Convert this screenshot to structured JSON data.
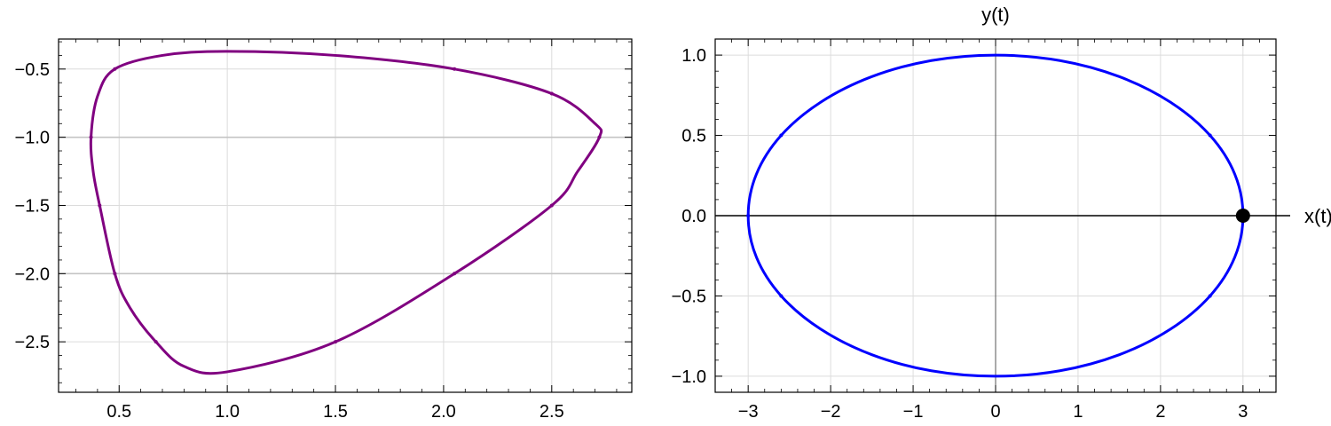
{
  "chart_data": [
    {
      "type": "line",
      "title": "",
      "xlabel": "",
      "ylabel": "",
      "xlim": [
        0.22,
        2.87
      ],
      "ylim": [
        -2.87,
        -0.28
      ],
      "xticks": [
        0.5,
        1.0,
        1.5,
        2.0,
        2.5
      ],
      "xtick_labels": [
        "0.5",
        "1.0",
        "1.5",
        "2.0",
        "2.5"
      ],
      "yticks": [
        -0.5,
        -1.0,
        -1.5,
        -2.0,
        -2.5
      ],
      "ytick_labels": [
        "−0.5",
        "−1.0",
        "−1.5",
        "−2.0",
        "−2.5"
      ],
      "grid": true,
      "frame": true,
      "highlight_gridlines_y": [
        -1.0,
        -2.0
      ],
      "series": [
        {
          "color": "#800080",
          "closed": true,
          "x": [
            0.37,
            0.4,
            0.48,
            0.7,
            1.0,
            1.5,
            2.05,
            2.5,
            2.7,
            2.72,
            2.62,
            2.5,
            2.05,
            1.5,
            1.0,
            0.8,
            0.67,
            0.55,
            0.48,
            0.41,
            0.38,
            0.37
          ],
          "y": [
            -1.0,
            -0.7,
            -0.5,
            -0.4,
            -0.37,
            -0.4,
            -0.5,
            -0.68,
            -0.9,
            -1.0,
            -1.25,
            -1.5,
            -2.0,
            -2.5,
            -2.72,
            -2.68,
            -2.5,
            -2.25,
            -2.0,
            -1.5,
            -1.25,
            -1.0
          ]
        }
      ],
      "markers": [
        {
          "x": 0.37,
          "y": -1.0
        },
        {
          "x": 0.48,
          "y": -0.5
        },
        {
          "x": 2.05,
          "y": -0.5
        },
        {
          "x": 2.5,
          "y": -0.68
        },
        {
          "x": 2.72,
          "y": -1.0
        },
        {
          "x": 2.5,
          "y": -1.5
        },
        {
          "x": 2.05,
          "y": -2.0
        },
        {
          "x": 1.5,
          "y": -2.5
        },
        {
          "x": 0.67,
          "y": -2.5
        },
        {
          "x": 0.48,
          "y": -2.0
        },
        {
          "x": 0.41,
          "y": -1.5
        }
      ],
      "marker_color": "#800080"
    },
    {
      "type": "line",
      "title": "",
      "xlabel": "x(t)",
      "ylabel": "y(t)",
      "xlim": [
        -3.4,
        3.4
      ],
      "ylim": [
        -1.1,
        1.1
      ],
      "xticks": [
        -3,
        -2,
        -1,
        0,
        1,
        2,
        3
      ],
      "xtick_labels": [
        "−3",
        "−2",
        "−1",
        "0",
        "1",
        "2",
        "3"
      ],
      "yticks": [
        1.0,
        0.5,
        0.0,
        -0.5,
        -1.0
      ],
      "ytick_labels": [
        "1.0",
        "0.5",
        "0.0",
        "−0.5",
        "−1.0"
      ],
      "grid": true,
      "frame": true,
      "axes_through_origin": true,
      "series": [
        {
          "color": "#0000FF",
          "closed": true,
          "x": [
            3.0,
            2.9,
            2.6,
            2.12,
            1.5,
            0.78,
            0.0,
            -0.78,
            -1.5,
            -2.12,
            -2.6,
            -2.9,
            -3.0,
            -2.9,
            -2.6,
            -2.12,
            -1.5,
            -0.78,
            0.0,
            0.78,
            1.5,
            2.12,
            2.6,
            2.9,
            3.0
          ],
          "y": [
            0.0,
            0.259,
            0.5,
            0.707,
            0.866,
            0.966,
            1.0,
            0.966,
            0.866,
            0.707,
            0.5,
            0.259,
            0.0,
            -0.259,
            -0.5,
            -0.707,
            -0.866,
            -0.966,
            -1.0,
            -0.966,
            -0.866,
            -0.707,
            -0.5,
            -0.259,
            0.0
          ]
        }
      ],
      "markers": [
        {
          "x": 2.6,
          "y": 0.5
        },
        {
          "x": -2.6,
          "y": 0.5
        },
        {
          "x": -3.0,
          "y": 0.0
        },
        {
          "x": -2.6,
          "y": -0.5
        },
        {
          "x": 2.6,
          "y": -0.5
        }
      ],
      "marker_color": "#0000FF",
      "point": {
        "x": 3.0,
        "y": 0.0,
        "color": "#000000"
      }
    }
  ]
}
